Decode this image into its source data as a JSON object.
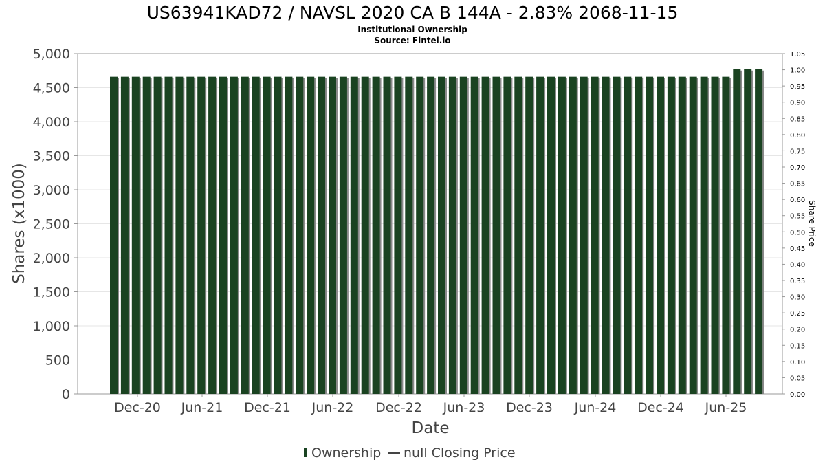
{
  "chart_data": {
    "type": "bar",
    "title": "US63941KAD72 / NAVSL 2020 CA B 144A - 2.83% 2068-11-15",
    "subtitles": [
      "Institutional Ownership",
      "Source: Fintel.io"
    ],
    "xlabel": "Date",
    "ylabel": "Shares (x1000)",
    "y2label": "Share Price",
    "ylim": [
      0,
      5000
    ],
    "y2lim": [
      0,
      1.05
    ],
    "yticks": [
      "0",
      "500",
      "1,000",
      "1,500",
      "2,000",
      "2,500",
      "3,000",
      "3,500",
      "4,000",
      "4,500",
      "5,000"
    ],
    "y2ticks": [
      "0.00",
      "0.05",
      "0.10",
      "0.15",
      "0.20",
      "0.25",
      "0.30",
      "0.35",
      "0.40",
      "0.45",
      "0.50",
      "0.55",
      "0.60",
      "0.65",
      "0.70",
      "0.75",
      "0.80",
      "0.85",
      "0.90",
      "0.95",
      "1.00",
      "1.05"
    ],
    "xticks": [
      "Dec-20",
      "Jun-21",
      "Dec-21",
      "Jun-22",
      "Dec-22",
      "Jun-23",
      "Dec-23",
      "Jun-24",
      "Dec-24",
      "Jun-25"
    ],
    "grid": true,
    "legend_position": "bottom-center",
    "colors": {
      "bar": "#1a4321",
      "bar_shadow": "#8a8a8a",
      "grid": "#e6e6e6",
      "frame": "#999999"
    },
    "series": [
      {
        "name": "Ownership",
        "values": [
          4660,
          4660,
          4660,
          4660,
          4660,
          4660,
          4660,
          4660,
          4660,
          4660,
          4660,
          4660,
          4660,
          4660,
          4660,
          4660,
          4660,
          4660,
          4660,
          4660,
          4660,
          4660,
          4660,
          4660,
          4660,
          4660,
          4660,
          4660,
          4660,
          4660,
          4660,
          4660,
          4660,
          4660,
          4660,
          4660,
          4660,
          4660,
          4660,
          4660,
          4660,
          4660,
          4660,
          4660,
          4660,
          4660,
          4660,
          4660,
          4660,
          4660,
          4660,
          4660,
          4660,
          4660,
          4660,
          4660,
          4660,
          4770,
          4770,
          4770
        ]
      }
    ],
    "legend": [
      {
        "label": "Ownership",
        "marker": "bar"
      },
      {
        "label": "null Closing Price",
        "marker": "line"
      }
    ]
  }
}
